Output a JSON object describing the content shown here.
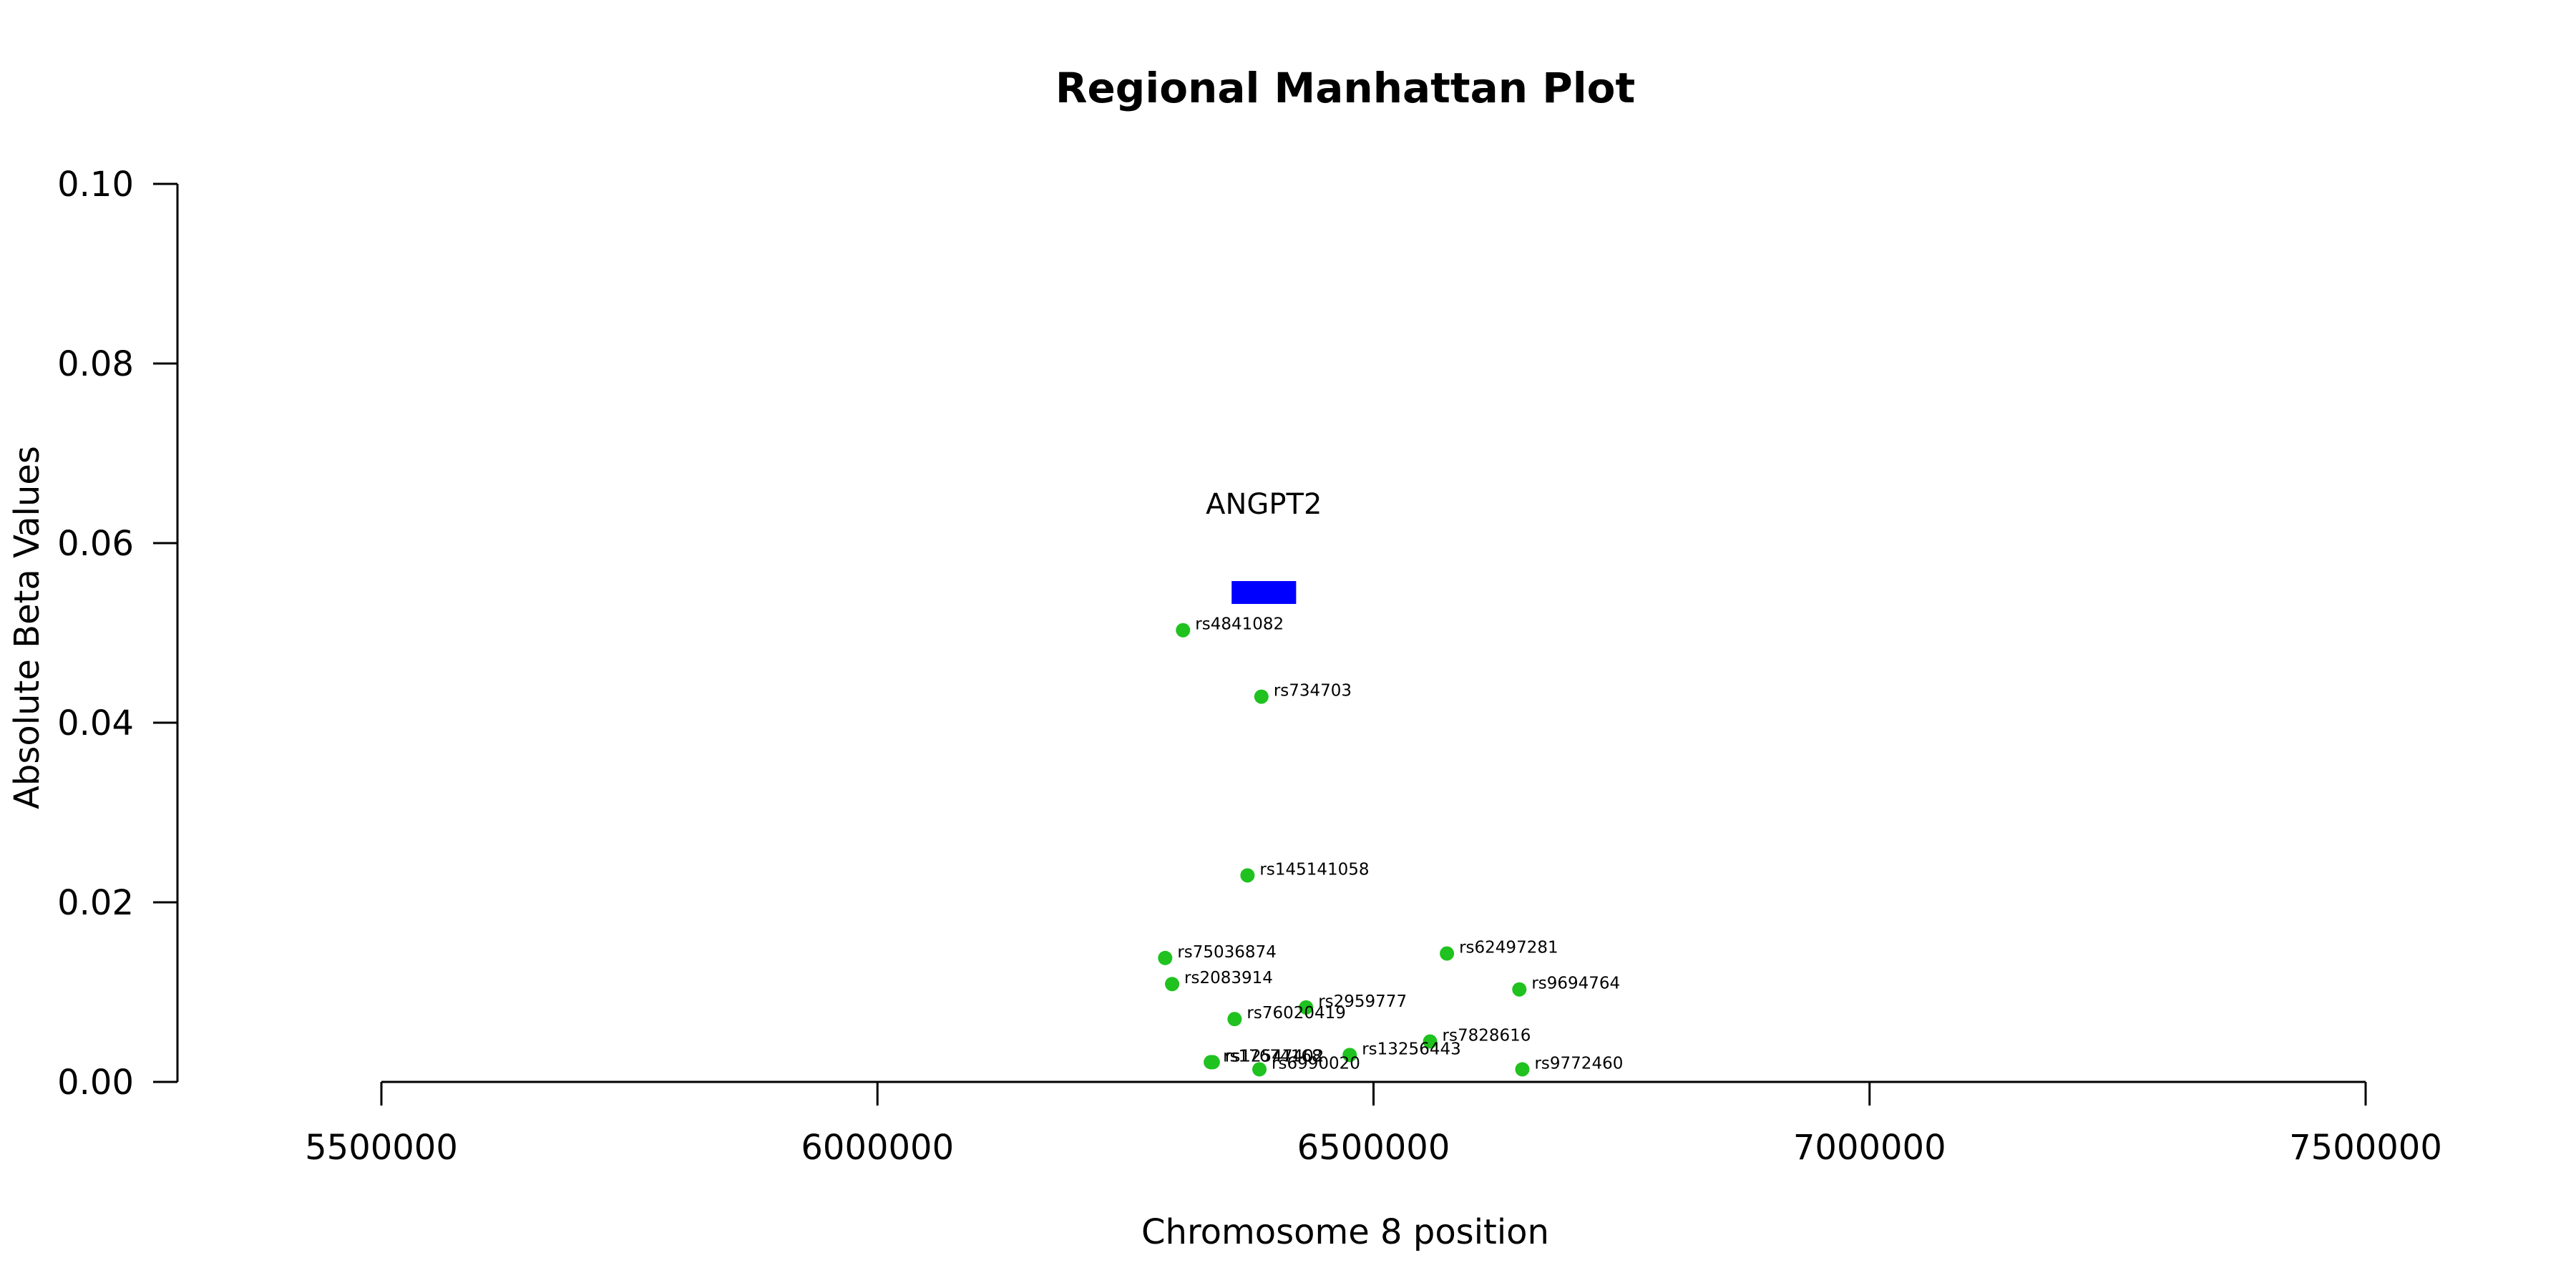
{
  "chart_data": {
    "type": "scatter",
    "title": "Regional Manhattan Plot",
    "xlabel": "Chromosome 8 position",
    "ylabel": "Absolute Beta Values",
    "xlim": [
      5500000,
      7500000
    ],
    "ylim": [
      0,
      0.1
    ],
    "x_ticks": [
      5500000,
      6000000,
      6500000,
      7000000,
      7500000
    ],
    "x_tick_labels": [
      "5500000",
      "6000000",
      "6500000",
      "7000000",
      "7500000"
    ],
    "y_ticks": [
      0,
      0.02,
      0.04,
      0.06,
      0.08,
      0.1
    ],
    "y_tick_labels": [
      "0.00",
      "0.02",
      "0.04",
      "0.06",
      "0.08",
      "0.10"
    ],
    "grid": false,
    "point_color": "#1fc21f",
    "gene": {
      "name": "ANGPT2",
      "start": 6357000,
      "end": 6422000,
      "y": 0.0545,
      "color": "#0000ff"
    },
    "points": [
      {
        "label": "rs4841082",
        "x": 6308000,
        "y": 0.0503
      },
      {
        "label": "rs734703",
        "x": 6387000,
        "y": 0.0429
      },
      {
        "label": "rs145141058",
        "x": 6373000,
        "y": 0.023
      },
      {
        "label": "rs75036874",
        "x": 6290000,
        "y": 0.0138
      },
      {
        "label": "rs62497281",
        "x": 6574000,
        "y": 0.0143
      },
      {
        "label": "rs2083914",
        "x": 6297000,
        "y": 0.0109
      },
      {
        "label": "rs9694764",
        "x": 6647000,
        "y": 0.0103
      },
      {
        "label": "rs2959777",
        "x": 6432000,
        "y": 0.0083
      },
      {
        "label": "rs76020419",
        "x": 6360000,
        "y": 0.007
      },
      {
        "label": "rs7828616",
        "x": 6557000,
        "y": 0.0045
      },
      {
        "label": "rs13256443",
        "x": 6476000,
        "y": 0.003
      },
      {
        "label": "rs17674168",
        "x": 6336000,
        "y": 0.0022
      },
      {
        "label": "rs12547402",
        "x": 6338000,
        "y": 0.0022
      },
      {
        "label": "rs6990020",
        "x": 6385000,
        "y": 0.0014
      },
      {
        "label": "rs9772460",
        "x": 6650000,
        "y": 0.0014
      }
    ]
  }
}
